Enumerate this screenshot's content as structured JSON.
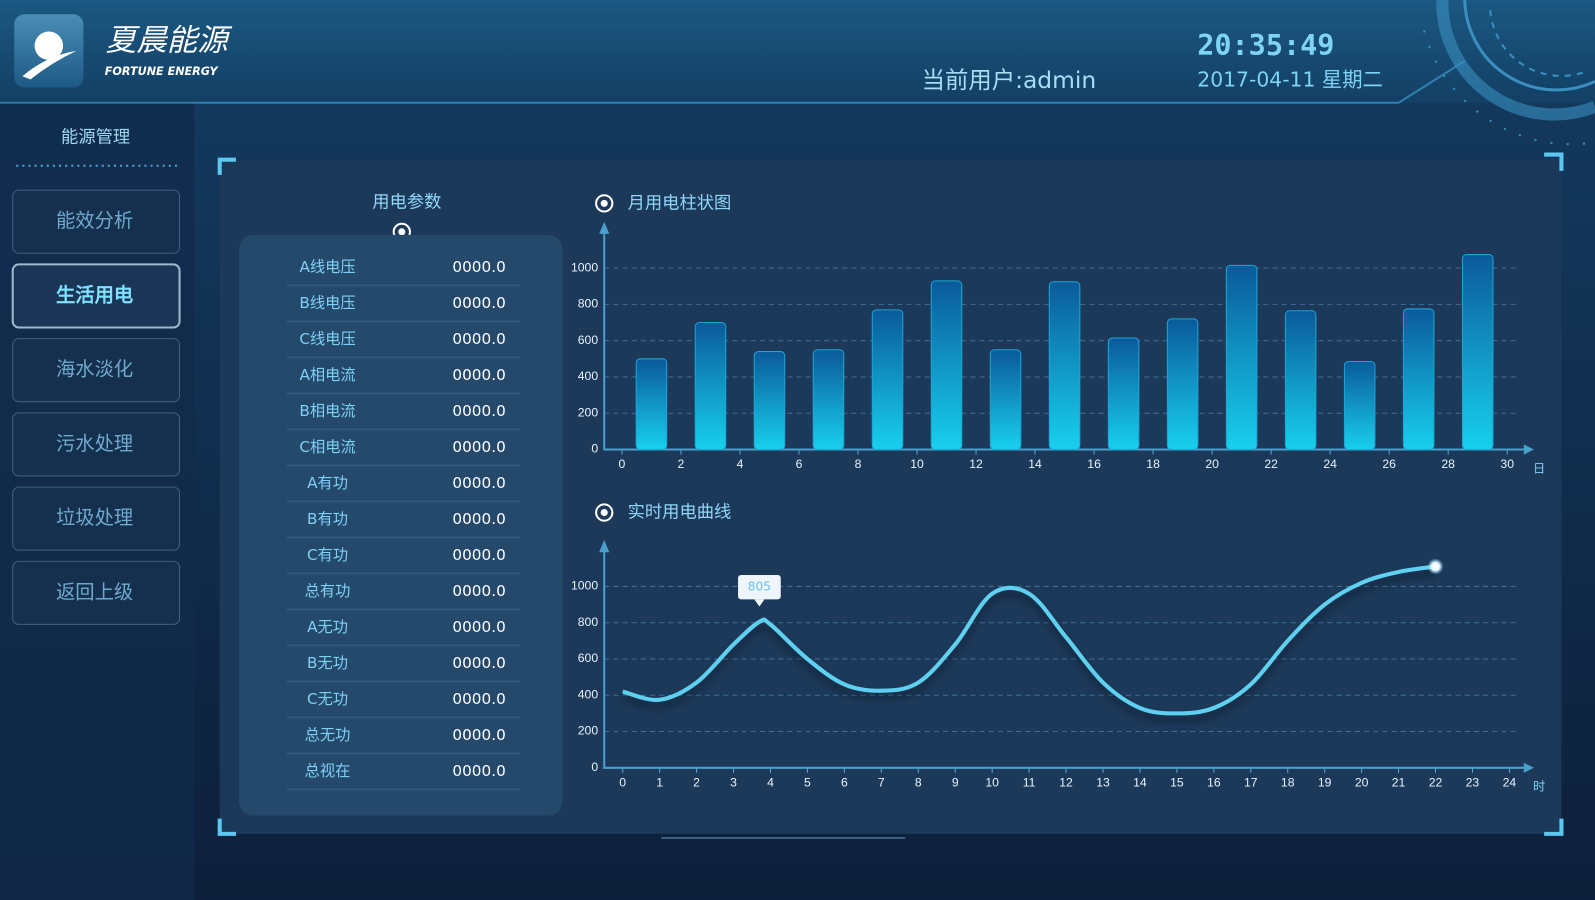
{
  "header": {
    "brand": "夏晨能源",
    "brand_en": "FORTUNE ENERGY",
    "user": "当前用户:admin",
    "time": "20:35:49",
    "date": "2017-04-11 星期二"
  },
  "sidebar": {
    "title": "能源管理",
    "items": [
      "能效分析",
      "生活用电",
      "海水淡化",
      "污水处理",
      "垃圾处理",
      "返回上级"
    ],
    "active_index": 1
  },
  "params": {
    "title": "用电参数",
    "rows": [
      [
        "A线电压",
        "0000.0"
      ],
      [
        "B线电压",
        "0000.0"
      ],
      [
        "C线电压",
        "0000.0"
      ],
      [
        "A相电流",
        "0000.0"
      ],
      [
        "B相电流",
        "0000.0"
      ],
      [
        "C相电流",
        "0000.0"
      ],
      [
        "A有功",
        "0000.0"
      ],
      [
        "B有功",
        "0000.0"
      ],
      [
        "C有功",
        "0000.0"
      ],
      [
        "总有功",
        "0000.0"
      ],
      [
        "A无功",
        "0000.0"
      ],
      [
        "B无功",
        "0000.0"
      ],
      [
        "C无功",
        "0000.0"
      ],
      [
        "总无功",
        "0000.0"
      ],
      [
        "总视在",
        "0000.0"
      ]
    ]
  },
  "chart_data": [
    {
      "type": "bar",
      "title": "月用电柱状图",
      "x_label": "日",
      "x": [
        1,
        3,
        5,
        7,
        9,
        11,
        13,
        15,
        17,
        19,
        21,
        23,
        25,
        27,
        29
      ],
      "values": [
        500,
        700,
        540,
        550,
        770,
        930,
        550,
        925,
        615,
        720,
        1015,
        765,
        485,
        775,
        1075
      ],
      "color": "#1aa6d6",
      "xlim": [
        -0.6,
        30.7
      ],
      "ylim": [
        0,
        1200
      ],
      "xticks": [
        0,
        2,
        4,
        6,
        8,
        10,
        12,
        14,
        16,
        18,
        20,
        22,
        24,
        26,
        28,
        30
      ],
      "yticks": [
        0,
        200,
        400,
        600,
        800,
        1000
      ],
      "grid": true
    },
    {
      "type": "line",
      "title": "实时用电曲线",
      "x_label": "时",
      "x": [
        0,
        1,
        2,
        3,
        3.7,
        4,
        5,
        6,
        7,
        8,
        9,
        10,
        11,
        12,
        13,
        14,
        15,
        16,
        17,
        18,
        19,
        20,
        21,
        22
      ],
      "values": [
        420,
        375,
        470,
        680,
        805,
        790,
        600,
        460,
        425,
        470,
        680,
        960,
        960,
        720,
        470,
        330,
        300,
        330,
        460,
        700,
        900,
        1020,
        1080,
        1110
      ],
      "color": "#5fd0f0",
      "xlim": [
        -0.5,
        24.5
      ],
      "ylim": [
        0,
        1200
      ],
      "xticks": [
        0,
        1,
        2,
        3,
        4,
        5,
        6,
        7,
        8,
        9,
        10,
        11,
        12,
        13,
        14,
        15,
        16,
        17,
        18,
        19,
        20,
        21,
        22,
        23,
        24
      ],
      "yticks": [
        0,
        200,
        400,
        600,
        800,
        1000
      ],
      "grid": true,
      "annotation": {
        "x": 3.7,
        "value": 805
      }
    }
  ]
}
